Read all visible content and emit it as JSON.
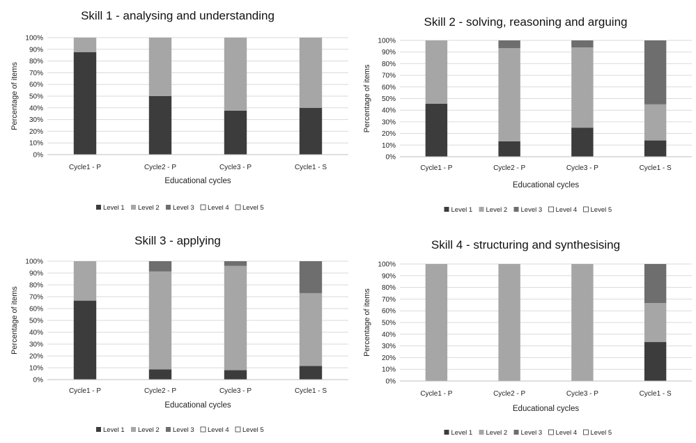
{
  "chart_data": [
    {
      "type": "bar",
      "stacked": true,
      "title": "Skill 1 - analysing and understanding",
      "xlabel": "Educational cycles",
      "ylabel": "Percentage of items",
      "categories": [
        "Cycle1 - P",
        "Cycle2 - P",
        "Cycle3 - P",
        "Cycle1 - S"
      ],
      "yticks": [
        "0%",
        "10%",
        "20%",
        "30%",
        "40%",
        "50%",
        "60%",
        "70%",
        "80%",
        "90%",
        "100%"
      ],
      "ylim": [
        0,
        100
      ],
      "grid": true,
      "legend_position": "bottom",
      "series": [
        {
          "name": "Level 1",
          "color": "#3c3c3c",
          "values": [
            87.5,
            50,
            37.5,
            40
          ]
        },
        {
          "name": "Level 2",
          "color": "#a6a6a6",
          "values": [
            12.5,
            50,
            62.5,
            60
          ]
        },
        {
          "name": "Level 3",
          "color": "#6e6e6e",
          "values": [
            0,
            0,
            0,
            0
          ]
        },
        {
          "name": "Level 4",
          "color": "#ffffff",
          "values": [
            0,
            0,
            0,
            0
          ]
        },
        {
          "name": "Level 5",
          "color": "#ffffff",
          "values": [
            0,
            0,
            0,
            0
          ]
        }
      ]
    },
    {
      "type": "bar",
      "stacked": true,
      "title": "Skill 2 - solving, reasoning and arguing",
      "xlabel": "Educational cycles",
      "ylabel": "Percentage of items",
      "categories": [
        "Cycle1 - P",
        "Cycle2 - P",
        "Cycle3 - P",
        "Cycle1 - S"
      ],
      "yticks": [
        "0%",
        "10%",
        "20%",
        "30%",
        "40%",
        "50%",
        "60%",
        "70%",
        "80%",
        "90%",
        "100%"
      ],
      "ylim": [
        0,
        100
      ],
      "grid": true,
      "legend_position": "bottom",
      "series": [
        {
          "name": "Level 1",
          "color": "#3c3c3c",
          "values": [
            45.5,
            13.3,
            25,
            14
          ]
        },
        {
          "name": "Level 2",
          "color": "#a6a6a6",
          "values": [
            54.5,
            80,
            69,
            31
          ]
        },
        {
          "name": "Level 3",
          "color": "#6e6e6e",
          "values": [
            0,
            6.7,
            6,
            55
          ]
        },
        {
          "name": "Level 4",
          "color": "#ffffff",
          "values": [
            0,
            0,
            0,
            0
          ]
        },
        {
          "name": "Level 5",
          "color": "#ffffff",
          "values": [
            0,
            0,
            0,
            0
          ]
        }
      ]
    },
    {
      "type": "bar",
      "stacked": true,
      "title": "Skill 3 - applying",
      "xlabel": "Educational cycles",
      "ylabel": "Percentage of items",
      "categories": [
        "Cycle1 - P",
        "Cycle2 - P",
        "Cycle3 - P",
        "Cycle1 - S"
      ],
      "yticks": [
        "0%",
        "10%",
        "20%",
        "30%",
        "40%",
        "50%",
        "60%",
        "70%",
        "80%",
        "90%",
        "100%"
      ],
      "ylim": [
        0,
        100
      ],
      "grid": true,
      "legend_position": "bottom",
      "series": [
        {
          "name": "Level 1",
          "color": "#3c3c3c",
          "values": [
            66.7,
            8.7,
            8,
            11.5
          ]
        },
        {
          "name": "Level 2",
          "color": "#a6a6a6",
          "values": [
            33.3,
            82.6,
            88,
            61.5
          ]
        },
        {
          "name": "Level 3",
          "color": "#6e6e6e",
          "values": [
            0,
            8.7,
            4,
            27
          ]
        },
        {
          "name": "Level 4",
          "color": "#ffffff",
          "values": [
            0,
            0,
            0,
            0
          ]
        },
        {
          "name": "Level 5",
          "color": "#ffffff",
          "values": [
            0,
            0,
            0,
            0
          ]
        }
      ]
    },
    {
      "type": "bar",
      "stacked": true,
      "title": "Skill 4 - structuring and synthesising",
      "xlabel": "Educational cycles",
      "ylabel": "Percentage of items",
      "categories": [
        "Cycle1 - P",
        "Cycle2 - P",
        "Cycle3 - P",
        "Cycle1 - S"
      ],
      "yticks": [
        "0%",
        "10%",
        "20%",
        "30%",
        "40%",
        "50%",
        "60%",
        "70%",
        "80%",
        "90%",
        "100%"
      ],
      "ylim": [
        0,
        100
      ],
      "grid": true,
      "legend_position": "bottom",
      "series": [
        {
          "name": "Level 1",
          "color": "#3c3c3c",
          "values": [
            0,
            0,
            0,
            33.3
          ]
        },
        {
          "name": "Level 2",
          "color": "#a6a6a6",
          "values": [
            100,
            100,
            100,
            33.3
          ]
        },
        {
          "name": "Level 3",
          "color": "#6e6e6e",
          "values": [
            0,
            0,
            0,
            33.4
          ]
        },
        {
          "name": "Level 4",
          "color": "#ffffff",
          "values": [
            0,
            0,
            0,
            0
          ]
        },
        {
          "name": "Level 5",
          "color": "#ffffff",
          "values": [
            0,
            0,
            0,
            0
          ]
        }
      ]
    }
  ]
}
